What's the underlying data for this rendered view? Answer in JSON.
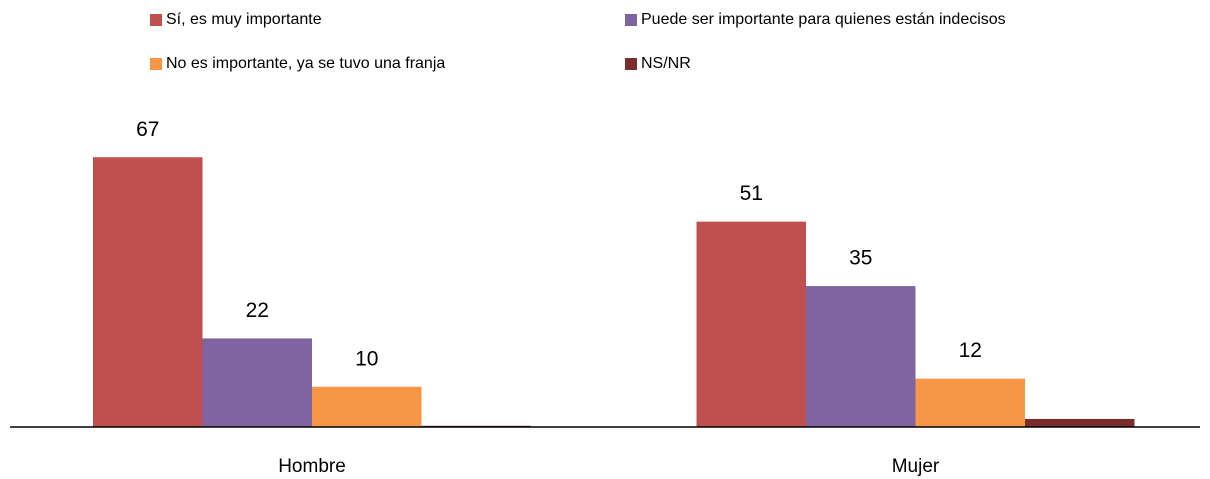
{
  "chart_data": {
    "type": "bar",
    "categories": [
      "Hombre",
      "Mujer"
    ],
    "series": [
      {
        "name": "Sí, es muy importante",
        "color": "#c0504d",
        "values": [
          67,
          51
        ]
      },
      {
        "name": "Puede ser importante para quienes están indecisos",
        "color": "#8064a2",
        "values": [
          22,
          35
        ]
      },
      {
        "name": "No es importante, ya se tuvo una franja",
        "color": "#f79646",
        "values": [
          10,
          12
        ]
      },
      {
        "name": "NS/NR",
        "color": "#7b2c2c",
        "values": [
          0.3,
          2
        ],
        "labels": false
      }
    ],
    "ylim": [
      0,
      75
    ],
    "legend": "top"
  }
}
